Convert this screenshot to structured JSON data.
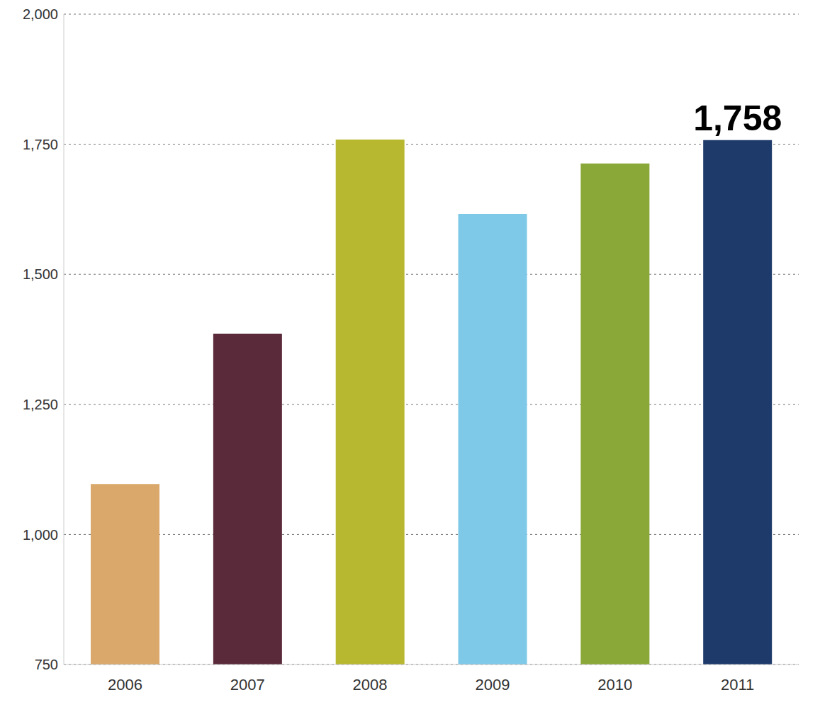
{
  "chart_data": {
    "type": "bar",
    "categories": [
      "2006",
      "2007",
      "2008",
      "2009",
      "2010",
      "2011"
    ],
    "values": [
      1097,
      1386,
      1759,
      1616,
      1713,
      1758
    ],
    "value_labels": [
      null,
      null,
      null,
      null,
      null,
      "1,758"
    ],
    "data_labels": true,
    "colors": [
      "#d9a86a",
      "#5a2a3a",
      "#b8b830",
      "#7ec8e8",
      "#8aa838",
      "#1e3a6a"
    ],
    "ylim": [
      750,
      2000
    ],
    "yticks": [
      750,
      {
        "value": 1000,
        "label": "1,000"
      },
      {
        "value": 1250,
        "label": "1,250"
      },
      {
        "value": 1500,
        "label": "1,500"
      },
      {
        "value": 1750,
        "label": "1,750"
      },
      {
        "value": 2000,
        "label": "2,000"
      }
    ],
    "grid": true
  }
}
